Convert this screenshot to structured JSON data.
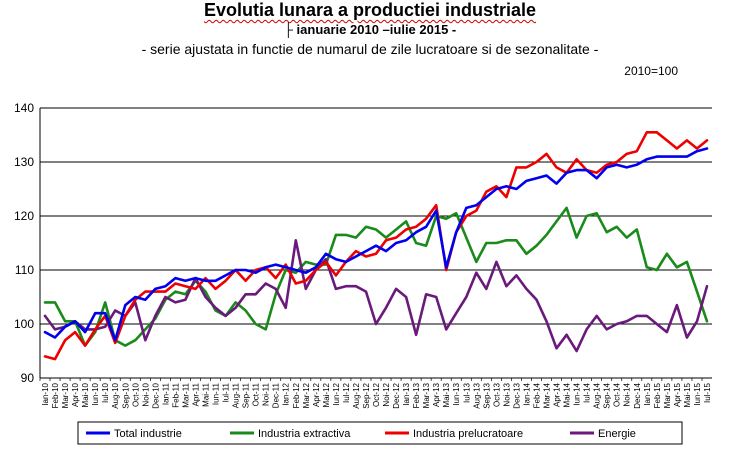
{
  "header": {
    "title": "Evolutia lunara a productiei industriale",
    "subtitle": "ianuarie 2010 –iulie 2015 -",
    "subtitle2": "- serie ajustata in functie de numarul de zile lucratoare si de sezonalitate -",
    "base_note": "2010=100"
  },
  "colors": {
    "total": "#0000ee",
    "extractiva": "#1a8a1a",
    "prelucratoare": "#ee0000",
    "energie": "#6a1a7a",
    "grid": "#000000"
  },
  "chart_data": {
    "type": "line",
    "ylim": [
      90,
      140
    ],
    "yticks": [
      90,
      100,
      110,
      120,
      130,
      140
    ],
    "grid": true,
    "legend_position": "bottom",
    "categories": [
      "Ian-10",
      "Feb-10",
      "Mar-10",
      "Apr-10",
      "Mai-10",
      "Iun-10",
      "Iul-10",
      "Aug-10",
      "Sep-10",
      "Oct-10",
      "Noi-10",
      "Dec-10",
      "Ian-11",
      "Feb-11",
      "Mar-11",
      "Apr-11",
      "Mai-11",
      "Iun-11",
      "Iul-11",
      "Aug-11",
      "Sep-11",
      "Oct-11",
      "Noi-11",
      "Dec-11",
      "Ian-12",
      "Feb-12",
      "Mar-12",
      "Apr-12",
      "Mai-12",
      "Iun-12",
      "Iul-12",
      "Aug-12",
      "Sep-12",
      "Oct-12",
      "Noi-12",
      "Dec-12",
      "Ian-13",
      "Feb-13",
      "Mar-13",
      "Apr-13",
      "Mai-13",
      "Iun-13",
      "Iul-13",
      "Aug-13",
      "Sep-13",
      "Oct-13",
      "Noi-13",
      "Dec-13",
      "Ian-14",
      "Feb-14",
      "Mar-14",
      "Apr-14",
      "Mai-14",
      "Iun-14",
      "Iul-14",
      "Aug-14",
      "Sep-14",
      "Oct-14",
      "Noi-14",
      "Dec-14",
      "Ian-15",
      "Feb-15",
      "Mar-15",
      "Apr-15",
      "Mai-15",
      "Iun-15",
      "Iul-15"
    ],
    "xlabels": [
      "Ian-10",
      "Feb-10",
      "Mar-10",
      "Apr-10",
      "Mai-10",
      "Iun-10",
      "Iul-10",
      "Aug-10",
      "Sep-10",
      "Oct-10",
      "Noi-10",
      "Dec-10",
      "Ian-11",
      "Feb-11",
      "Mar-11",
      "Apr-11",
      "Mai-11",
      "Iun-11",
      "Iul-11",
      "Aug-11",
      "Sep-11",
      "Oct-11",
      "Noi-11",
      "Dec-11",
      "Ian-12",
      "Feb-12",
      "Mar-12",
      "Apr-12",
      "Mai-12",
      "Iun-12",
      "Iul-12",
      "Aug-12",
      "Sep-12",
      "Oct-12",
      "Noi-12",
      "Dec-12",
      "Ian-13",
      "Feb-13",
      "Mar-13",
      "Apr-13",
      "Mai-13",
      "Iun-13",
      "Iul-13",
      "Aug-13",
      "Sep-13",
      "Oct-13",
      "Noi-13",
      "Dec-13",
      "Ian-14",
      "Feb-14",
      "Mar-14",
      "Apr-14",
      "Mai-14",
      "Iun-14",
      "Iul-14",
      "Aug-14",
      "Sep-14",
      "Oct-14",
      "Noi-14",
      "Dec-14",
      "Ian-15",
      "Feb-15",
      "Mar-15",
      "Apr-15",
      "Mai-15",
      "Iun-15",
      "Iul-15"
    ],
    "series": [
      {
        "name": "Total industrie",
        "color": "#0000ee",
        "values": [
          98.5,
          97.5,
          99.5,
          100.5,
          98.5,
          102.0,
          102.0,
          97.0,
          103.5,
          105.0,
          104.5,
          106.5,
          107.0,
          108.5,
          108.0,
          108.5,
          108.0,
          108.0,
          109.0,
          110.0,
          110.0,
          109.5,
          110.5,
          111.0,
          110.5,
          110.0,
          109.5,
          110.5,
          113.0,
          112.0,
          111.5,
          112.5,
          113.5,
          114.5,
          113.5,
          115.0,
          115.5,
          117.0,
          118.0,
          121.0,
          110.5,
          117.0,
          121.5,
          122.0,
          123.5,
          125.0,
          125.5,
          125.0,
          126.5,
          127.0,
          127.5,
          126.0,
          128.0,
          128.5,
          128.5,
          127.0,
          129.0,
          129.5,
          129.0,
          129.5,
          130.5,
          131.0,
          131.0,
          131.0,
          131.0,
          132.0,
          132.5
        ]
      },
      {
        "name": "Industria extractiva",
        "color": "#1a8a1a",
        "values": [
          104.0,
          104.0,
          100.5,
          100.5,
          96.0,
          98.5,
          104.0,
          97.0,
          96.0,
          97.0,
          99.0,
          101.0,
          104.5,
          106.0,
          105.5,
          108.0,
          106.0,
          102.5,
          101.5,
          104.0,
          102.5,
          100.0,
          99.0,
          105.5,
          110.0,
          109.5,
          111.5,
          111.0,
          111.0,
          116.5,
          116.5,
          116.0,
          118.0,
          117.5,
          116.0,
          117.5,
          119.0,
          115.0,
          114.5,
          120.0,
          119.5,
          120.5,
          116.0,
          111.5,
          115.0,
          115.0,
          115.5,
          115.5,
          113.0,
          114.5,
          116.5,
          119.0,
          121.5,
          116.0,
          120.0,
          120.5,
          117.0,
          118.0,
          116.0,
          117.5,
          110.5,
          110.0,
          113.0,
          110.5,
          111.5,
          106.0,
          100.5
        ]
      },
      {
        "name": "Industria prelucratoare",
        "color": "#ee0000",
        "values": [
          94.0,
          93.5,
          97.0,
          98.5,
          96.0,
          99.0,
          101.5,
          96.5,
          101.5,
          104.5,
          106.0,
          106.0,
          106.0,
          107.5,
          107.0,
          106.5,
          108.5,
          106.5,
          108.0,
          110.0,
          108.0,
          110.0,
          110.5,
          108.5,
          111.0,
          107.5,
          108.0,
          110.0,
          111.5,
          109.0,
          111.5,
          113.5,
          112.5,
          113.0,
          115.5,
          116.0,
          117.5,
          118.0,
          119.5,
          122.0,
          110.0,
          117.0,
          120.0,
          121.0,
          124.5,
          125.5,
          123.5,
          129.0,
          129.0,
          130.0,
          131.5,
          129.0,
          128.0,
          130.5,
          128.5,
          128.0,
          129.5,
          130.0,
          131.5,
          132.0,
          135.5,
          135.5,
          134.0,
          132.5,
          134.0,
          132.5,
          134.0
        ]
      },
      {
        "name": "Energie",
        "color": "#6a1a7a",
        "values": [
          101.5,
          99.0,
          99.5,
          100.5,
          99.0,
          99.0,
          99.5,
          102.5,
          101.5,
          104.0,
          97.0,
          101.5,
          105.0,
          104.0,
          104.5,
          108.5,
          105.0,
          103.0,
          101.5,
          103.0,
          105.5,
          105.5,
          107.5,
          106.5,
          103.0,
          115.5,
          106.5,
          110.0,
          112.0,
          106.5,
          107.0,
          107.0,
          106.0,
          100.0,
          103.0,
          106.5,
          105.0,
          98.0,
          105.5,
          105.0,
          99.0,
          102.0,
          105.0,
          109.5,
          106.5,
          111.5,
          107.0,
          109.0,
          106.5,
          104.5,
          100.5,
          95.5,
          98.0,
          95.0,
          99.0,
          101.5,
          99.0,
          100.0,
          100.5,
          101.5,
          101.5,
          100.0,
          98.5,
          103.5,
          97.5,
          100.5,
          107.0
        ]
      }
    ]
  }
}
